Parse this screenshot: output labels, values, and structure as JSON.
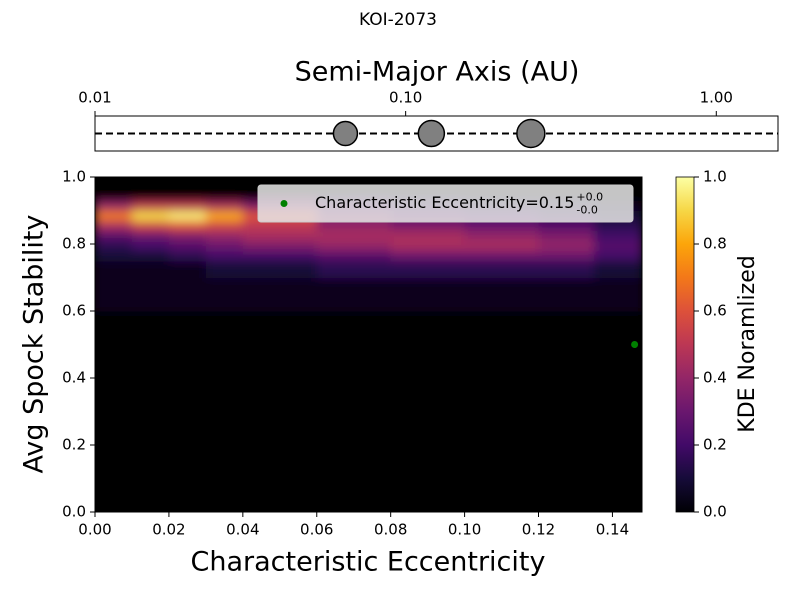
{
  "title": "KOI-2073",
  "chart_data": [
    {
      "type": "scatter",
      "xlabel": "Semi-Major Axis (AU)",
      "xscale": "log",
      "xlim": [
        0.01,
        1.58
      ],
      "xticks": [
        {
          "value": 0.01,
          "label": "0.01"
        },
        {
          "value": 0.1,
          "label": "0.10"
        },
        {
          "value": 1,
          "label": "1.00"
        }
      ],
      "ylim": [
        -1,
        1
      ],
      "x": [
        0.064,
        0.121,
        0.253
      ],
      "values": [
        0,
        0,
        0
      ],
      "sizes": [
        12,
        13,
        14
      ],
      "color": "#808080",
      "line_style": "dashed"
    },
    {
      "type": "contour",
      "xlabel": "Characteristic Eccentricity",
      "ylabel": "Avg Spock Stability",
      "xlim": [
        0,
        0.148
      ],
      "ylim": [
        0,
        1
      ],
      "xticks": [
        {
          "value": 0,
          "label": "0.00"
        },
        {
          "value": 0.02,
          "label": "0.02"
        },
        {
          "value": 0.04,
          "label": "0.04"
        },
        {
          "value": 0.06,
          "label": "0.06"
        },
        {
          "value": 0.08,
          "label": "0.08"
        },
        {
          "value": 0.1,
          "label": "0.10"
        },
        {
          "value": 0.12,
          "label": "0.12"
        },
        {
          "value": 0.14,
          "label": "0.14"
        }
      ],
      "yticks": [
        {
          "value": 0,
          "label": "0.0"
        },
        {
          "value": 0.2,
          "label": "0.2"
        },
        {
          "value": 0.4,
          "label": "0.4"
        },
        {
          "value": 0.6,
          "label": "0.6"
        },
        {
          "value": 0.8,
          "label": "0.8"
        },
        {
          "value": 1,
          "label": "1.0"
        }
      ],
      "x_edges": [
        0,
        0.01,
        0.02,
        0.03,
        0.04,
        0.06,
        0.08,
        0.1,
        0.12,
        0.135,
        0.148
      ],
      "y_edges": [
        0,
        0.6,
        0.7,
        0.75,
        0.78,
        0.81,
        0.84,
        0.87,
        0.9,
        0.93,
        1.0
      ],
      "z": [
        [
          0,
          0,
          0,
          0,
          0,
          0,
          0,
          0,
          0,
          0
        ],
        [
          0.05,
          0.05,
          0.05,
          0.05,
          0.05,
          0.05,
          0.05,
          0.05,
          0.05,
          0.05
        ],
        [
          0.05,
          0.05,
          0.05,
          0.1,
          0.1,
          0.15,
          0.15,
          0.15,
          0.15,
          0.1
        ],
        [
          0.1,
          0.1,
          0.15,
          0.2,
          0.2,
          0.25,
          0.3,
          0.3,
          0.3,
          0.2
        ],
        [
          0.15,
          0.2,
          0.25,
          0.3,
          0.35,
          0.4,
          0.45,
          0.45,
          0.4,
          0.25
        ],
        [
          0.25,
          0.3,
          0.35,
          0.4,
          0.45,
          0.45,
          0.45,
          0.4,
          0.35,
          0.2
        ],
        [
          0.45,
          0.55,
          0.6,
          0.55,
          0.5,
          0.4,
          0.35,
          0.3,
          0.25,
          0.15
        ],
        [
          0.7,
          0.9,
          0.95,
          0.8,
          0.6,
          0.35,
          0.25,
          0.2,
          0.15,
          0.1
        ],
        [
          0.4,
          0.5,
          0.5,
          0.45,
          0.35,
          0.2,
          0.15,
          0.1,
          0.1,
          0.05
        ],
        [
          0,
          0,
          0,
          0,
          0,
          0,
          0,
          0,
          0,
          0
        ]
      ],
      "colormap": "inferno",
      "colorbar": {
        "label": "KDE Noramlized",
        "lim": [
          0,
          1
        ],
        "ticks": [
          {
            "value": 0,
            "label": "0.0"
          },
          {
            "value": 0.2,
            "label": "0.2"
          },
          {
            "value": 0.4,
            "label": "0.4"
          },
          {
            "value": 0.6,
            "label": "0.6"
          },
          {
            "value": 0.8,
            "label": "0.8"
          },
          {
            "value": 1,
            "label": "1.0"
          }
        ]
      },
      "points": {
        "name": "Characteristic Eccentricity=0.15",
        "upper": "+0.0",
        "lower": "-0.0",
        "x": [
          0.146
        ],
        "values": [
          0.5
        ],
        "color": "#008000"
      },
      "legend": "upper right"
    }
  ]
}
